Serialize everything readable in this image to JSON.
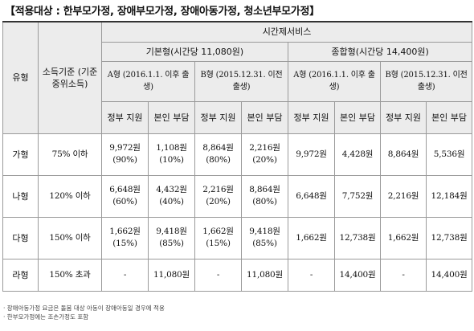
{
  "title": "【적용대상 : 한부모가정, 장애부모가정, 장애아동가정, 청소년부모가정】",
  "header": {
    "type": "유형",
    "income": "소득기준 (기준 중위소득)",
    "service": "시간제서비스",
    "basic": "기본형(시간당 11,080원)",
    "combined": "종합형(시간당 14,400원)",
    "basic_a": "A형 (2016.1.1. 이후 출생)",
    "basic_b": "B형 (2015.12.31. 이전 출생)",
    "comb_a": "A형 (2016.1.1. 이후 출생)",
    "comb_b": "B형 (2015.12.31. 이전 출생)",
    "gov": "정부 지원",
    "self": "본인 부담"
  },
  "rows": [
    {
      "type": "가형",
      "income": "75% 이하",
      "ba_gov": "9,972원 (90%)",
      "ba_self": "1,108원 (10%)",
      "bb_gov": "8,864원 (80%)",
      "bb_self": "2,216원 (20%)",
      "ca_gov": "9,972원",
      "ca_self": "4,428원",
      "cb_gov": "8,864원",
      "cb_self": "5,536원"
    },
    {
      "type": "나형",
      "income": "120% 이하",
      "ba_gov": "6,648원 (60%)",
      "ba_self": "4,432원 (40%)",
      "bb_gov": "2,216원 (20%)",
      "bb_self": "8,864원 (80%)",
      "ca_gov": "6,648원",
      "ca_self": "7,752원",
      "cb_gov": "2,216원",
      "cb_self": "12,184원"
    },
    {
      "type": "다형",
      "income": "150% 이하",
      "ba_gov": "1,662원 (15%)",
      "ba_self": "9,418원 (85%)",
      "bb_gov": "1,662원 (15%)",
      "bb_self": "9,418원 (85%)",
      "ca_gov": "1,662원",
      "ca_self": "12,738원",
      "cb_gov": "1,662원",
      "cb_self": "12,738원"
    },
    {
      "type": "라형",
      "income": "150% 초과",
      "ba_gov": "-",
      "ba_self": "11,080원",
      "bb_gov": "-",
      "bb_self": "11,080원",
      "ca_gov": "-",
      "ca_self": "14,400원",
      "cb_gov": "-",
      "cb_self": "14,400원"
    }
  ],
  "notes": [
    "· 장애아동가정 요금은 돌봄 대상 아동이 장애아동일 경우에 적용",
    "· 한부모가정에는 조손가정도 포함"
  ]
}
